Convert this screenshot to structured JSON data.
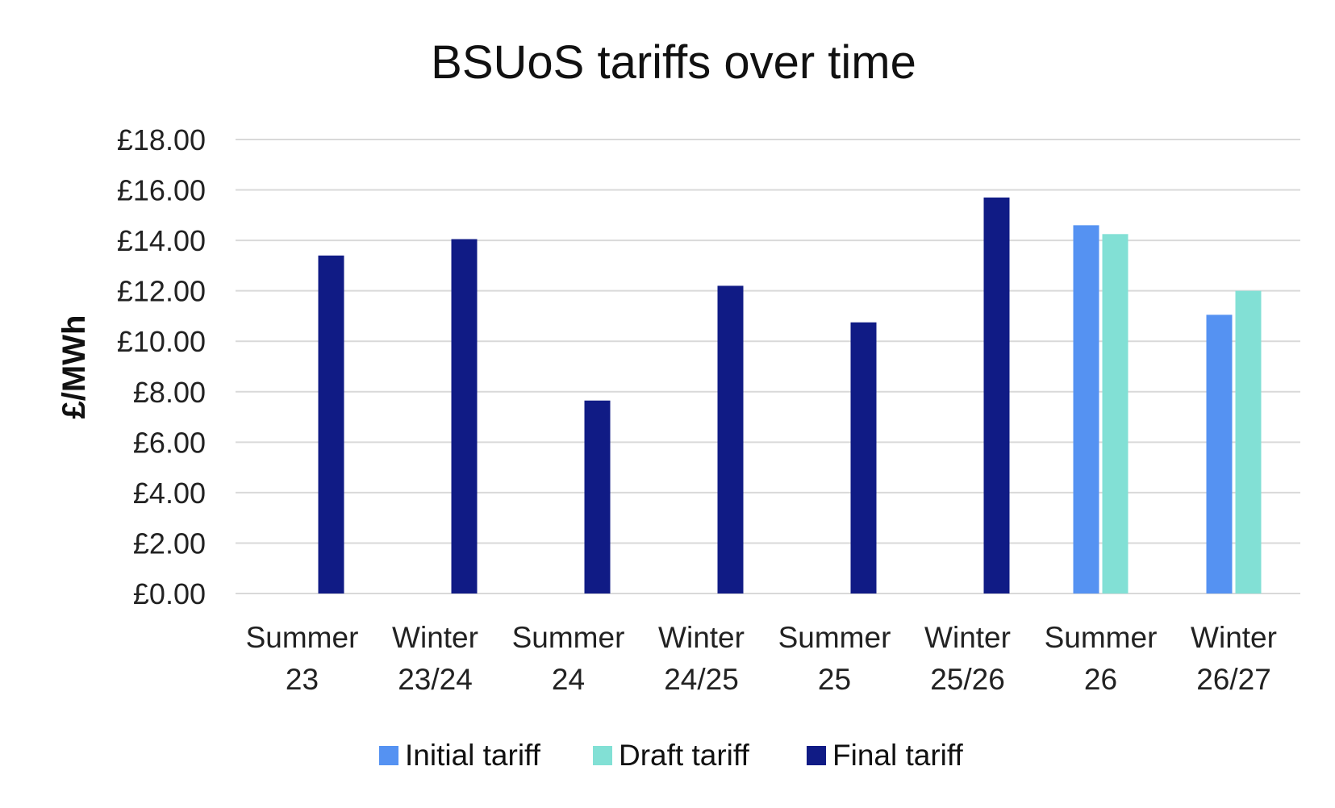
{
  "chart_data": {
    "type": "bar",
    "title": "BSUoS tariffs over time",
    "xlabel": "",
    "ylabel": "£/MWh",
    "ylim": [
      0,
      18
    ],
    "yticks": [
      "£0.00",
      "£2.00",
      "£4.00",
      "£6.00",
      "£8.00",
      "£10.00",
      "£12.00",
      "£14.00",
      "£16.00",
      "£18.00"
    ],
    "categories": [
      [
        "Summer",
        "23"
      ],
      [
        "Winter",
        "23/24"
      ],
      [
        "Summer",
        "24"
      ],
      [
        "Winter",
        "24/25"
      ],
      [
        "Summer",
        "25"
      ],
      [
        "Winter",
        "25/26"
      ],
      [
        "Summer",
        "26"
      ],
      [
        "Winter",
        "26/27"
      ]
    ],
    "series": [
      {
        "name": "Initial tariff",
        "color": "#5592f2",
        "values": [
          null,
          null,
          null,
          null,
          null,
          null,
          14.6,
          11.05
        ]
      },
      {
        "name": "Draft tariff",
        "color": "#82e0d5",
        "values": [
          null,
          null,
          null,
          null,
          null,
          null,
          14.25,
          12.0
        ]
      },
      {
        "name": "Final tariff",
        "color": "#101b85",
        "values": [
          13.4,
          14.05,
          7.65,
          12.2,
          10.75,
          15.7,
          null,
          null
        ]
      }
    ],
    "grid": true,
    "legend_position": "bottom"
  }
}
